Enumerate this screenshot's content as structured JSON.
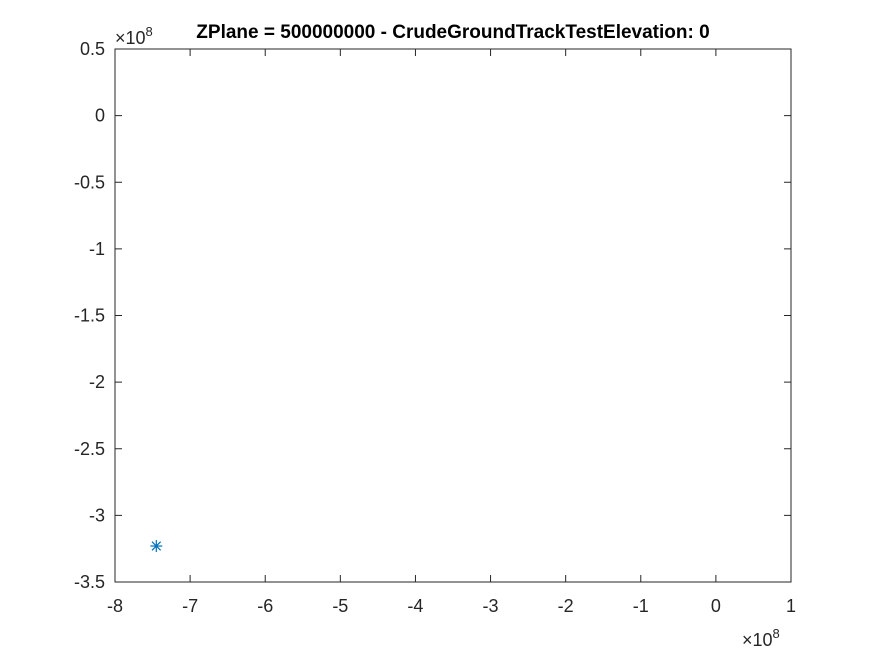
{
  "chart_data": {
    "type": "scatter",
    "title": "ZPlane = 500000000 - CrudeGroundTrackTestElevation: 0",
    "xlabel": "",
    "ylabel": "",
    "x_tick_labels": [
      "-8",
      "-7",
      "-6",
      "-5",
      "-4",
      "-3",
      "-2",
      "-1",
      "0",
      "1"
    ],
    "y_tick_labels": [
      "0.5",
      "0",
      "-0.5",
      "-1",
      "-1.5",
      "-2",
      "-2.5",
      "-3",
      "-3.5"
    ],
    "x_exponent": "8",
    "y_exponent": "8",
    "x_exponent_prefix": "×10",
    "y_exponent_prefix": "×10",
    "xlim": [
      -800000000,
      100000000
    ],
    "ylim": [
      -350000000,
      50000000
    ],
    "grid": false,
    "marker": "asterisk",
    "marker_color": "#0072BD",
    "axis_color": "#262626",
    "points": [
      {
        "x": -745000000,
        "y": -323000000
      }
    ]
  }
}
